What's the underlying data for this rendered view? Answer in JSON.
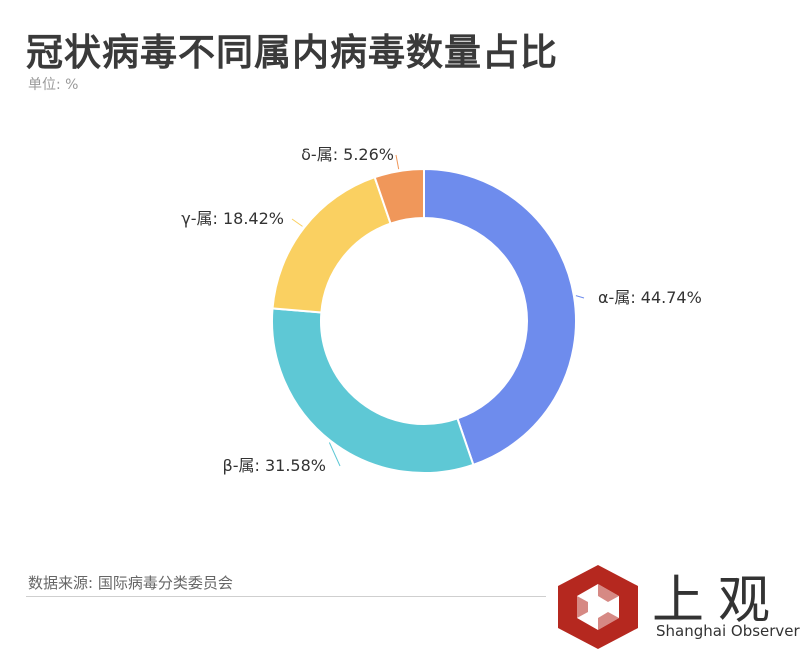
{
  "title": "冠状病毒不同属内病毒数量占比",
  "unit": "单位: %",
  "source": "数据来源: 国际病毒分类委员会",
  "brand": {
    "name_cn": "上观",
    "name_en": "Shanghai Observer",
    "color": "#b5281f"
  },
  "chart_data": {
    "type": "pie",
    "title": "冠状病毒不同属内病毒数量占比",
    "donut": true,
    "slices": [
      {
        "label": "α-属",
        "value": 44.74,
        "display": "α-属: 44.74%",
        "color": "#6e8ced"
      },
      {
        "label": "β-属",
        "value": 31.58,
        "display": "β-属: 31.58%",
        "color": "#5ec8d5"
      },
      {
        "label": "γ-属",
        "value": 18.42,
        "display": "γ-属: 18.42%",
        "color": "#fad061"
      },
      {
        "label": "δ-属",
        "value": 5.26,
        "display": "δ-属: 5.26%",
        "color": "#f0975a"
      }
    ]
  }
}
